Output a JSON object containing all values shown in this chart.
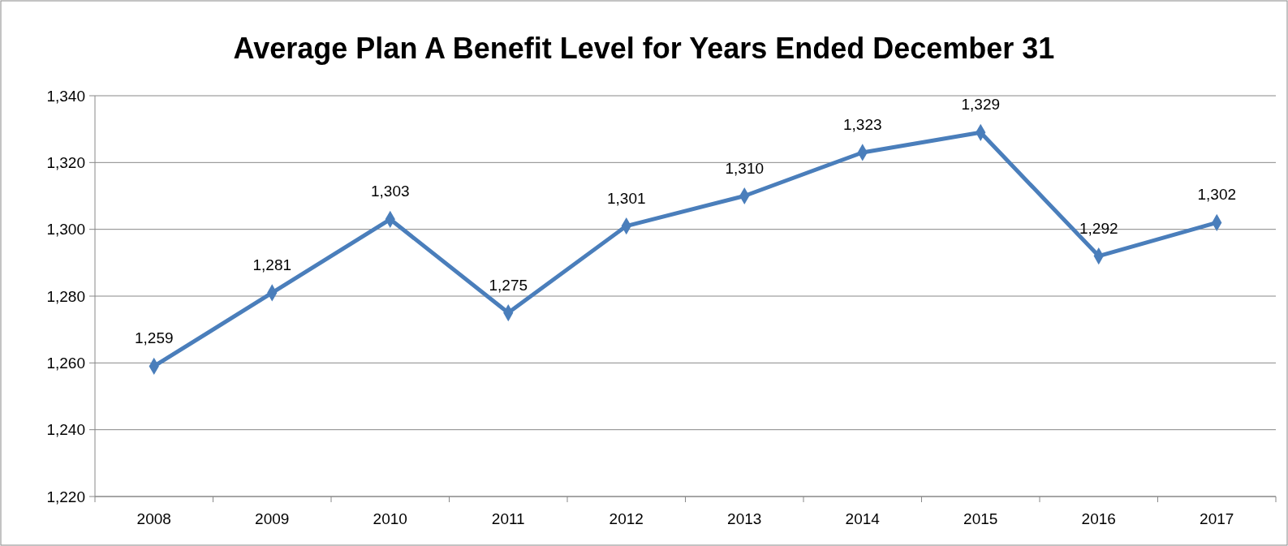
{
  "chart_data": {
    "type": "line",
    "title": "Average Plan A Benefit Level for Years Ended December 31",
    "categories": [
      "2008",
      "2009",
      "2010",
      "2011",
      "2012",
      "2013",
      "2014",
      "2015",
      "2016",
      "2017"
    ],
    "series": [
      {
        "color": "#4a7ebb",
        "values": [
          1259,
          1281,
          1303,
          1275,
          1301,
          1310,
          1323,
          1329,
          1292,
          1302
        ],
        "value_labels": [
          "1,259",
          "1,281",
          "1,303",
          "1,275",
          "1,301",
          "1,310",
          "1,323",
          "1,329",
          "1,292",
          "1,302"
        ]
      }
    ],
    "ylim": [
      1220,
      1340
    ],
    "yticks": [
      {
        "value": 1220,
        "label": "1,220"
      },
      {
        "value": 1240,
        "label": "1,240"
      },
      {
        "value": 1260,
        "label": "1,260"
      },
      {
        "value": 1280,
        "label": "1,280"
      },
      {
        "value": 1300,
        "label": "1,300"
      },
      {
        "value": 1320,
        "label": "1,320"
      },
      {
        "value": 1340,
        "label": "1,340"
      }
    ],
    "grid": "y",
    "marker": "diamond",
    "line_style": "solid"
  }
}
